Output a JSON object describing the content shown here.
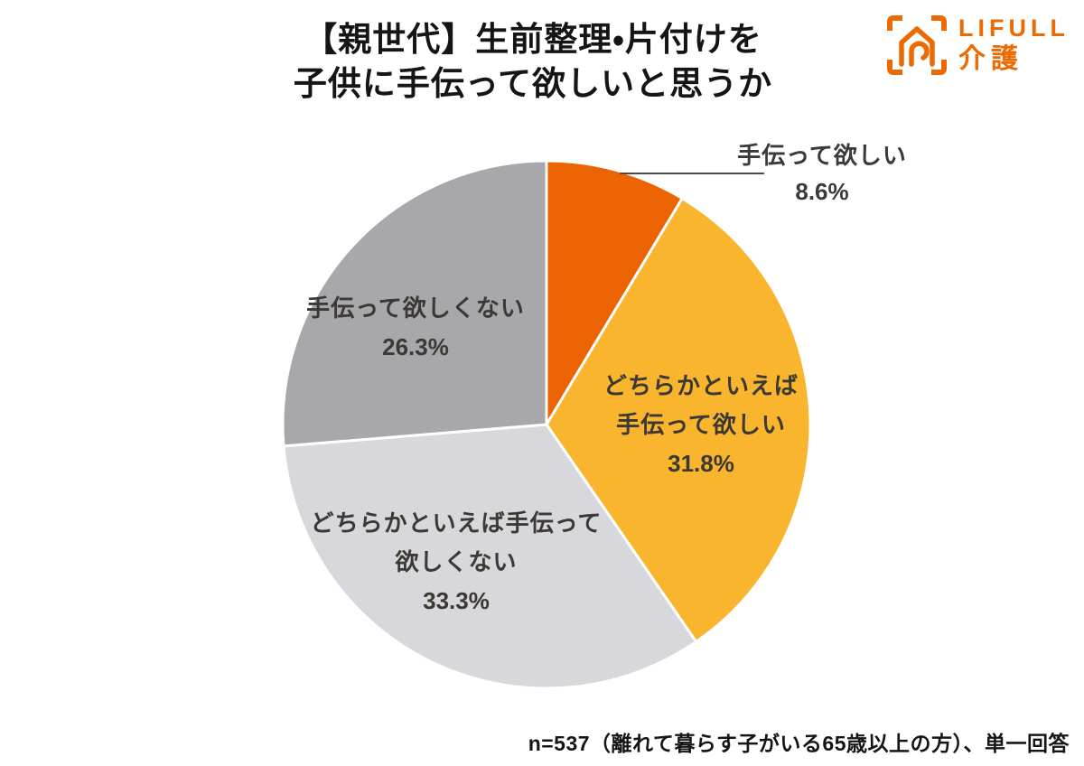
{
  "header": {
    "title_lines": [
      "【親世代】生前整理・片付けを",
      "子供に手伝って欲しいと思うか"
    ],
    "logo": {
      "brand": "LIFULL",
      "service": "介護",
      "color": "#ed6a02"
    }
  },
  "chart_data": {
    "type": "pie",
    "title": "【親世代】生前整理・片付けを子供に手伝って欲しいと思うか",
    "start_angle_deg": 0,
    "direction": "clockwise",
    "units": "%",
    "slice_border_color": "#ffffff",
    "slices": [
      {
        "label": "手伝って欲しい",
        "value_pct": 8.6,
        "pct_label": "8.6%",
        "color": "#ec6302",
        "label_lines": [
          "手伝って欲しい"
        ],
        "label_placement": "outside-right-with-leader-line"
      },
      {
        "label": "どちらかといえば手伝って欲しい",
        "value_pct": 31.8,
        "pct_label": "31.8%",
        "color": "#f8b52d",
        "label_lines": [
          "どちらかといえば",
          "手伝って欲しい"
        ],
        "label_placement": "inside"
      },
      {
        "label": "どちらかといえば手伝って欲しくない",
        "value_pct": 33.3,
        "pct_label": "33.3%",
        "color": "#d8d7db",
        "label_lines": [
          "どちらかといえば手伝って",
          "欲しくない"
        ],
        "label_placement": "inside"
      },
      {
        "label": "手伝って欲しくない",
        "value_pct": 26.3,
        "pct_label": "26.3%",
        "color": "#a8a7ab",
        "label_lines": [
          "手伝って欲しくない"
        ],
        "label_placement": "inside"
      }
    ]
  },
  "footer": {
    "note": "n=537（離れて暮らす子がいる65歳以上の方）、単一回答"
  }
}
